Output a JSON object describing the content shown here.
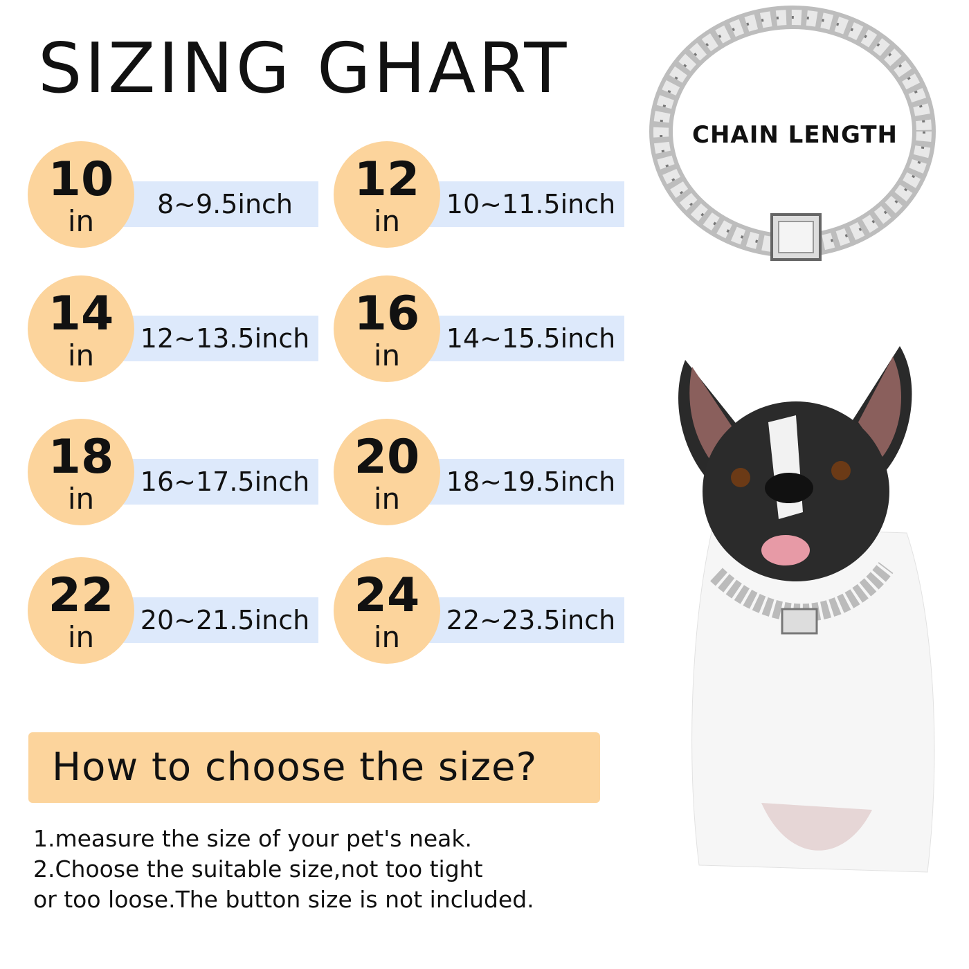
{
  "title": "SIZING GHART",
  "sizes": [
    {
      "size": "10",
      "unit": "in",
      "range": "8~9.5inch"
    },
    {
      "size": "12",
      "unit": "in",
      "range": "10~11.5inch"
    },
    {
      "size": "14",
      "unit": "in",
      "range": "12~13.5inch"
    },
    {
      "size": "16",
      "unit": "in",
      "range": "14~15.5inch"
    },
    {
      "size": "18",
      "unit": "in",
      "range": "16~17.5inch"
    },
    {
      "size": "20",
      "unit": "in",
      "range": "18~19.5inch"
    },
    {
      "size": "22",
      "unit": "in",
      "range": "20~21.5inch"
    },
    {
      "size": "24",
      "unit": "in",
      "range": "22~23.5inch"
    }
  ],
  "chain_label": "CHAIN LENGTH",
  "how_to": {
    "heading": "How to choose the size?",
    "lines": [
      "1.measure the size of your pet's neak.",
      "2.Choose the suitable size,not too tight",
      "or too loose.The button size is not included."
    ]
  },
  "colors": {
    "circle": "#fcd49c",
    "band": "#dde9fb",
    "heading_box": "#fcd49c"
  }
}
